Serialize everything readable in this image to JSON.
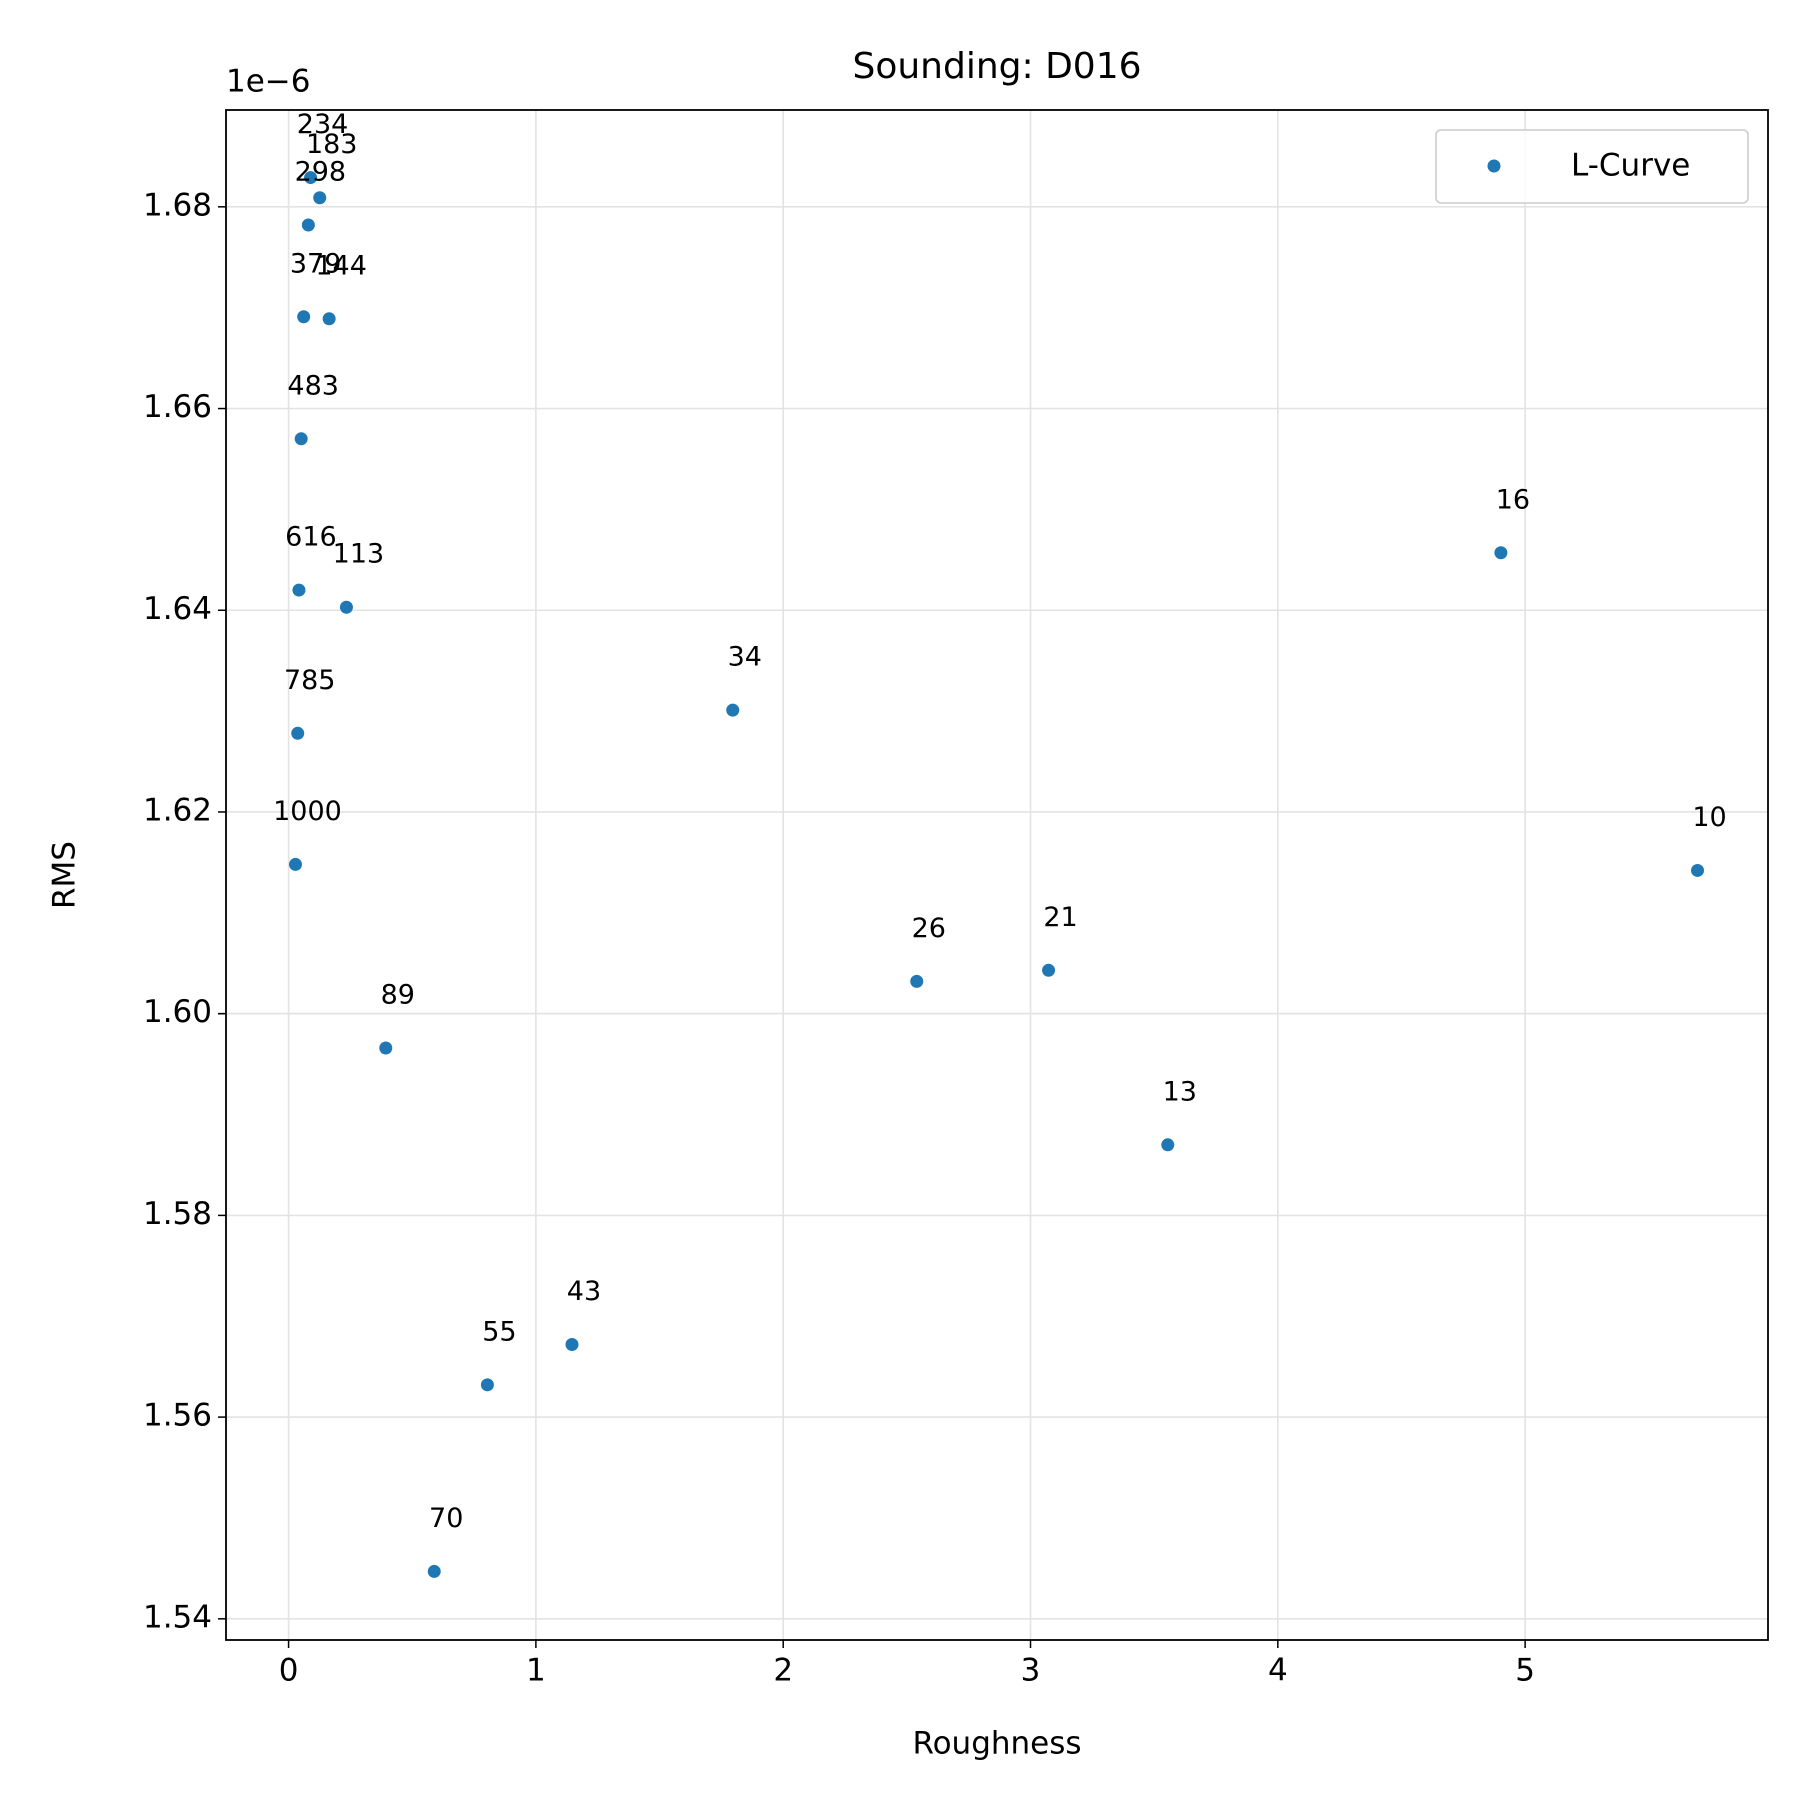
{
  "chart_data": {
    "type": "scatter",
    "title": "Sounding: D016",
    "x_label": "Roughness",
    "y_label": "RMS",
    "y_offset_label": "1e−6",
    "xlim": [
      -0.253,
      5.982
    ],
    "ylim": [
      1.5379,
      1.6896
    ],
    "xticks": [
      0,
      1,
      2,
      3,
      4,
      5
    ],
    "yticks": [
      1.54,
      1.56,
      1.58,
      1.6,
      {
        "value": 1.6,
        "label": "1.60"
      },
      1.62,
      1.64,
      1.66,
      1.68
    ],
    "grid": true,
    "legend": "upper right",
    "series": [
      {
        "name": "L-Curve",
        "color": "#1f77b4",
        "x": [
          5.697,
          3.555,
          4.902,
          3.073,
          2.54,
          1.796,
          1.146,
          0.804,
          0.589,
          0.393,
          0.234,
          0.164,
          0.126,
          0.089,
          0.08,
          0.061,
          0.051,
          0.042,
          0.037,
          0.028
        ],
        "values": [
          1.6142,
          1.587,
          1.6457,
          1.6043,
          1.6032,
          1.6301,
          1.5672,
          1.5632,
          1.5447,
          1.5966,
          1.6403,
          1.6689,
          1.6809,
          1.6829,
          1.6782,
          1.6691,
          1.657,
          1.642,
          1.6278,
          1.6148
        ],
        "point_labels": [
          "10",
          "13",
          "16",
          "21",
          "26",
          "34",
          "43",
          "55",
          "70",
          "89",
          "113",
          "144",
          "183",
          "234",
          "298",
          "379",
          "483",
          "616",
          "785",
          "1000"
        ]
      }
    ]
  }
}
